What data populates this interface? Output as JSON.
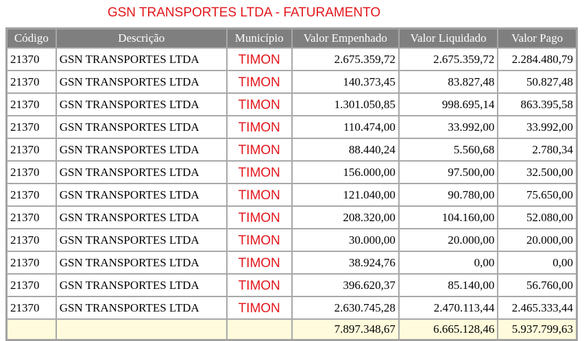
{
  "title": "GSN TRANSPORTES LTDA - FATURAMENTO",
  "headers": [
    "Código",
    "Descrição",
    "Município",
    "Valor Empenhado",
    "Valor Liquidado",
    "Valor Pago"
  ],
  "rows": [
    [
      "21370",
      "GSN TRANSPORTES LTDA",
      "TIMON",
      "2.675.359,72",
      "2.675.359,72",
      "2.284.480,79"
    ],
    [
      "21370",
      "GSN TRANSPORTES LTDA",
      "TIMON",
      "140.373,45",
      "83.827,48",
      "50.827,48"
    ],
    [
      "21370",
      "GSN TRANSPORTES LTDA",
      "TIMON",
      "1.301.050,85",
      "998.695,14",
      "863.395,58"
    ],
    [
      "21370",
      "GSN TRANSPORTES LTDA",
      "TIMON",
      "110.474,00",
      "33.992,00",
      "33.992,00"
    ],
    [
      "21370",
      "GSN TRANSPORTES LTDA",
      "TIMON",
      "88.440,24",
      "5.560,68",
      "2.780,34"
    ],
    [
      "21370",
      "GSN TRANSPORTES LTDA",
      "TIMON",
      "156.000,00",
      "97.500,00",
      "32.500,00"
    ],
    [
      "21370",
      "GSN TRANSPORTES LTDA",
      "TIMON",
      "121.040,00",
      "90.780,00",
      "75.650,00"
    ],
    [
      "21370",
      "GSN TRANSPORTES LTDA",
      "TIMON",
      "208.320,00",
      "104.160,00",
      "52.080,00"
    ],
    [
      "21370",
      "GSN TRANSPORTES LTDA",
      "TIMON",
      "30.000,00",
      "20.000,00",
      "20.000,00"
    ],
    [
      "21370",
      "GSN TRANSPORTES LTDA",
      "TIMON",
      "38.924,76",
      "0,00",
      "0,00"
    ],
    [
      "21370",
      "GSN TRANSPORTES LTDA",
      "TIMON",
      "396.620,37",
      "85.140,00",
      "56.760,00"
    ],
    [
      "21370",
      "GSN TRANSPORTES LTDA",
      "TIMON",
      "2.630.745,28",
      "2.470.113,44",
      "2.465.333,44"
    ]
  ],
  "totals": [
    "7.897.348,67",
    "6.665.128,46",
    "5.937.799,63"
  ]
}
